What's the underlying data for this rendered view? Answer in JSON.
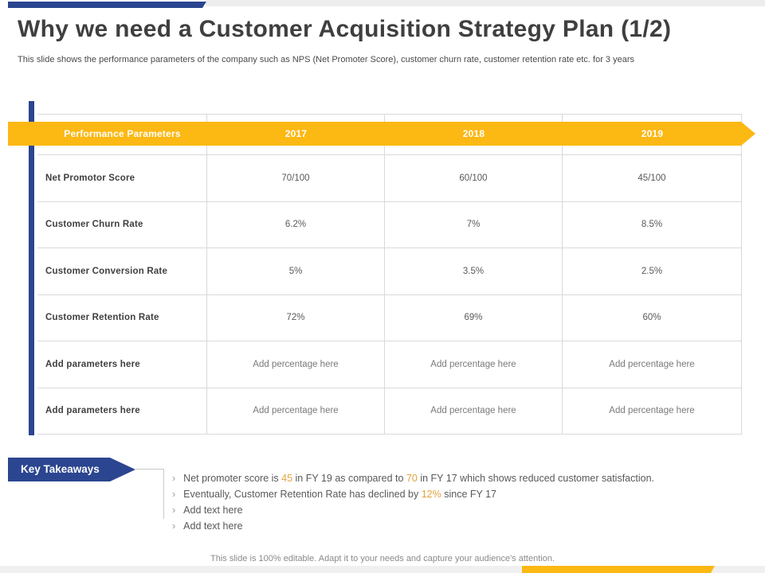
{
  "slide": {
    "title": "Why we need a Customer Acquisition Strategy Plan (1/2)",
    "subtitle": "This slide shows the performance parameters of the company such as NPS (Net Promoter Score), customer churn rate, customer retention rate etc. for 3 years",
    "footer_note": "This slide is 100% editable. Adapt it to your needs and capture your audience's attention."
  },
  "colors": {
    "navy_accent": "#2b4590",
    "amber_accent": "#fcb813",
    "highlight_text": "#e2a33d",
    "grid_line": "#d9d9d9"
  },
  "table": {
    "columns": [
      "Performance Parameters",
      "2017",
      "2018",
      "2019"
    ],
    "rows": [
      {
        "label": "Net Promotor Score",
        "values": [
          "70/100",
          "60/100",
          "45/100"
        ],
        "placeholder": false
      },
      {
        "label": "Customer Churn Rate",
        "values": [
          "6.2%",
          "7%",
          "8.5%"
        ],
        "placeholder": false
      },
      {
        "label": "Customer Conversion Rate",
        "values": [
          "5%",
          "3.5%",
          "2.5%"
        ],
        "placeholder": false
      },
      {
        "label": "Customer Retention Rate",
        "values": [
          "72%",
          "69%",
          "60%"
        ],
        "placeholder": false
      },
      {
        "label": "Add parameters here",
        "values": [
          "Add percentage here",
          "Add percentage here",
          "Add percentage here"
        ],
        "placeholder": true
      },
      {
        "label": "Add parameters here",
        "values": [
          "Add percentage here",
          "Add percentage here",
          "Add percentage here"
        ],
        "placeholder": true
      }
    ]
  },
  "takeaways": {
    "label": "Key Takeaways",
    "bullet_glyph": "›",
    "items": [
      {
        "placeholder": false,
        "segments": [
          {
            "text": "Net promoter score is ",
            "highlight": false
          },
          {
            "text": "45",
            "highlight": true
          },
          {
            "text": " in FY 19 as compared to ",
            "highlight": false
          },
          {
            "text": "70",
            "highlight": true
          },
          {
            "text": " in FY 17 which shows reduced customer satisfaction.",
            "highlight": false
          }
        ]
      },
      {
        "placeholder": false,
        "segments": [
          {
            "text": "Eventually, Customer Retention Rate has declined by ",
            "highlight": false
          },
          {
            "text": "12%",
            "highlight": true
          },
          {
            "text": " since FY 17",
            "highlight": false
          }
        ]
      },
      {
        "placeholder": true,
        "segments": [
          {
            "text": "Add text here",
            "highlight": false
          }
        ]
      },
      {
        "placeholder": true,
        "segments": [
          {
            "text": "Add text here",
            "highlight": false
          }
        ]
      }
    ]
  },
  "chart_data": {
    "type": "table",
    "title": "Performance Parameters over 3 years",
    "categories": [
      "2017",
      "2018",
      "2019"
    ],
    "series": [
      {
        "name": "Net Promotor Score (out of 100)",
        "values": [
          70,
          60,
          45
        ]
      },
      {
        "name": "Customer Churn Rate (%)",
        "values": [
          6.2,
          7,
          8.5
        ]
      },
      {
        "name": "Customer Conversion Rate (%)",
        "values": [
          5,
          3.5,
          2.5
        ]
      },
      {
        "name": "Customer Retention Rate (%)",
        "values": [
          72,
          69,
          60
        ]
      }
    ]
  }
}
